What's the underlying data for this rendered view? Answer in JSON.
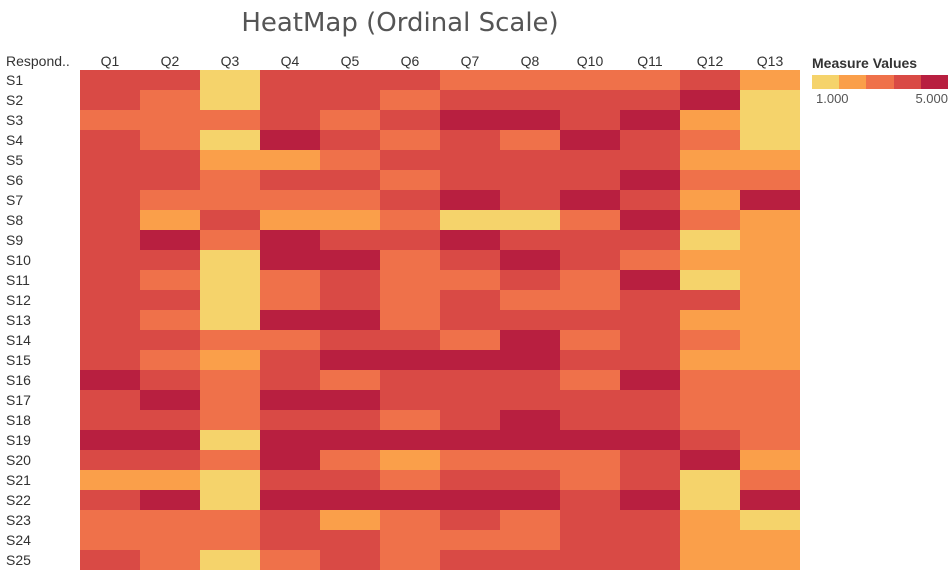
{
  "chart_data": {
    "type": "heatmap",
    "title": "HeatMap (Ordinal Scale)",
    "row_header": "Respond..",
    "columns": [
      "Q1",
      "Q2",
      "Q3",
      "Q4",
      "Q5",
      "Q6",
      "Q7",
      "Q8",
      "Q10",
      "Q11",
      "Q12",
      "Q13"
    ],
    "rows": [
      "S1",
      "S2",
      "S3",
      "S4",
      "S5",
      "S6",
      "S7",
      "S8",
      "S9",
      "S10",
      "S11",
      "S12",
      "S13",
      "S14",
      "S15",
      "S16",
      "S17",
      "S18",
      "S19",
      "S20",
      "S21",
      "S22",
      "S23",
      "S24",
      "S25"
    ],
    "values": [
      [
        4,
        4,
        1,
        4,
        4,
        4,
        3,
        3,
        3,
        3,
        4,
        2
      ],
      [
        4,
        3,
        1,
        4,
        4,
        3,
        4,
        4,
        4,
        4,
        5,
        1
      ],
      [
        3,
        3,
        3,
        4,
        3,
        4,
        5,
        5,
        4,
        5,
        2,
        1
      ],
      [
        4,
        3,
        1,
        5,
        4,
        3,
        4,
        3,
        5,
        4,
        3,
        1
      ],
      [
        4,
        4,
        2,
        2,
        3,
        4,
        4,
        4,
        4,
        4,
        2,
        2
      ],
      [
        4,
        4,
        3,
        4,
        4,
        3,
        4,
        4,
        4,
        5,
        3,
        3
      ],
      [
        4,
        3,
        3,
        3,
        3,
        4,
        5,
        4,
        5,
        4,
        2,
        5
      ],
      [
        4,
        2,
        4,
        2,
        2,
        3,
        1,
        1,
        3,
        5,
        3,
        2
      ],
      [
        4,
        5,
        3,
        5,
        4,
        4,
        5,
        4,
        4,
        4,
        1,
        2
      ],
      [
        4,
        4,
        1,
        5,
        5,
        3,
        4,
        5,
        4,
        3,
        2,
        2
      ],
      [
        4,
        3,
        1,
        3,
        4,
        3,
        3,
        4,
        3,
        5,
        1,
        2
      ],
      [
        4,
        4,
        1,
        3,
        4,
        3,
        4,
        3,
        3,
        4,
        4,
        2
      ],
      [
        4,
        3,
        1,
        5,
        5,
        3,
        4,
        4,
        4,
        4,
        2,
        2
      ],
      [
        4,
        4,
        3,
        3,
        4,
        4,
        3,
        5,
        3,
        4,
        3,
        2
      ],
      [
        4,
        3,
        2,
        4,
        5,
        5,
        5,
        5,
        4,
        4,
        2,
        2
      ],
      [
        5,
        4,
        3,
        4,
        3,
        4,
        4,
        4,
        3,
        5,
        3,
        3
      ],
      [
        4,
        5,
        3,
        5,
        5,
        4,
        4,
        4,
        4,
        4,
        3,
        3
      ],
      [
        4,
        4,
        3,
        4,
        4,
        3,
        4,
        5,
        4,
        4,
        3,
        3
      ],
      [
        5,
        5,
        1,
        5,
        5,
        5,
        5,
        5,
        5,
        5,
        4,
        3
      ],
      [
        4,
        4,
        3,
        5,
        3,
        2,
        3,
        3,
        3,
        4,
        5,
        2
      ],
      [
        2,
        2,
        1,
        4,
        4,
        3,
        4,
        4,
        3,
        4,
        1,
        3
      ],
      [
        4,
        5,
        1,
        5,
        5,
        5,
        5,
        5,
        4,
        5,
        1,
        5
      ],
      [
        3,
        3,
        3,
        4,
        2,
        3,
        4,
        3,
        4,
        4,
        2,
        1
      ],
      [
        3,
        3,
        3,
        4,
        4,
        3,
        3,
        3,
        4,
        4,
        2,
        2
      ],
      [
        4,
        3,
        1,
        3,
        4,
        3,
        4,
        4,
        4,
        4,
        2,
        2
      ]
    ],
    "scale": [
      1,
      5
    ],
    "color_steps": [
      "#f5d36b",
      "#fa9f4a",
      "#ef714a",
      "#d94a45",
      "#b81f40"
    ],
    "legend": {
      "title": "Measure Values",
      "min_label": "1.000",
      "max_label": "5.000",
      "placement": "right"
    }
  }
}
